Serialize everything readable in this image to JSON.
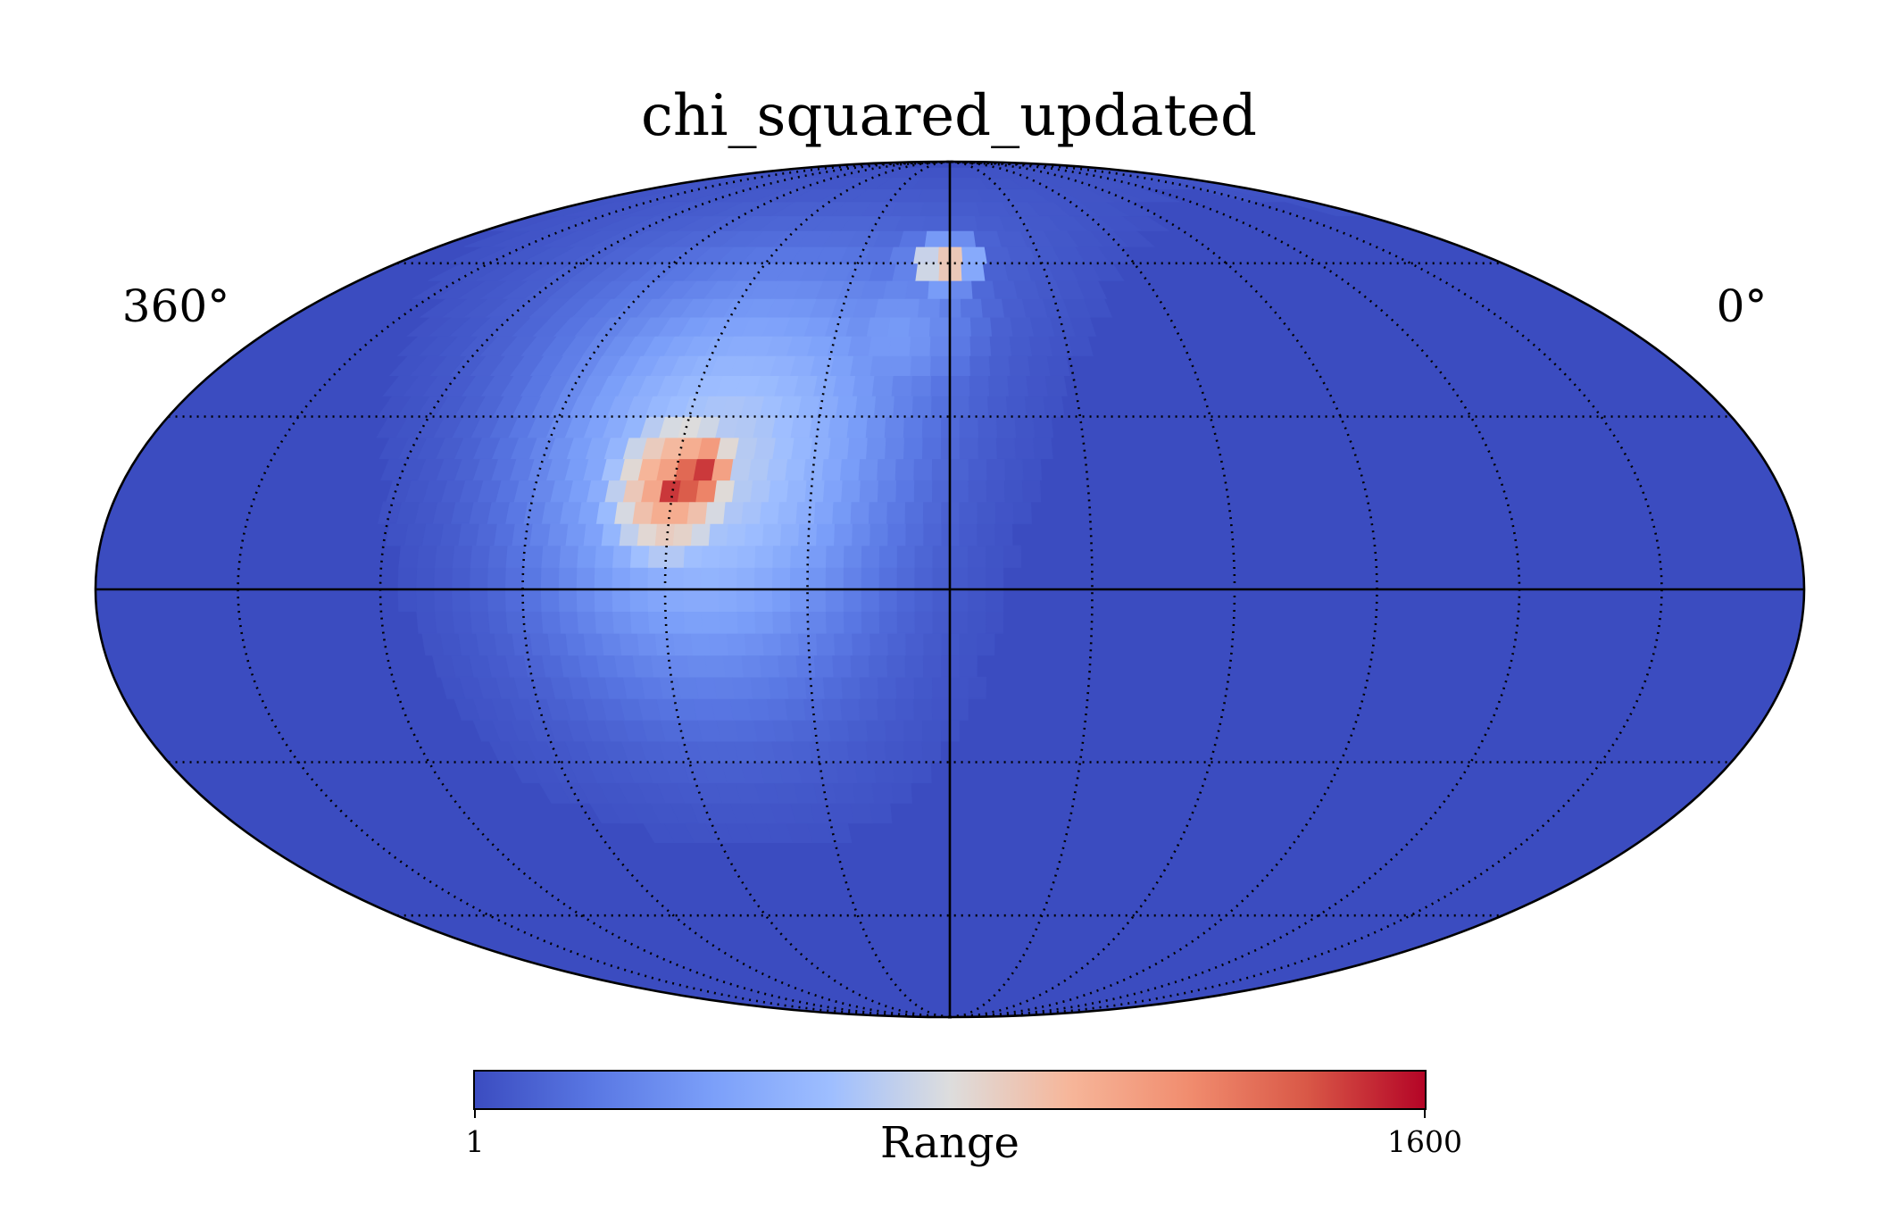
{
  "chart_data": {
    "type": "heatmap",
    "projection": "mollweide",
    "title": "chi_squared_updated",
    "lon_labels": {
      "left": "360°",
      "right": "0°"
    },
    "grid": true,
    "colorbar": {
      "label": "Range",
      "min": 1,
      "max": 1600,
      "min_label": "1",
      "max_label": "1600",
      "colormap": "coolwarm",
      "orientation": "horizontal",
      "placement": "bottom"
    },
    "background_value": 1,
    "hotspots": [
      {
        "lon_deg": 59,
        "lat_deg": 17,
        "value": 1600,
        "spread_deg": 4
      },
      {
        "lon_deg": 55,
        "lat_deg": 20,
        "value": 1500,
        "spread_deg": 6
      },
      {
        "lon_deg": 60,
        "lat_deg": 18,
        "value": 1150,
        "spread_deg": 12
      },
      {
        "lon_deg": 52,
        "lat_deg": 21,
        "value": 700,
        "spread_deg": 26
      },
      {
        "lon_deg": 37,
        "lat_deg": 33,
        "value": 420,
        "spread_deg": 18
      },
      {
        "lon_deg": 15,
        "lat_deg": 45,
        "value": 380,
        "spread_deg": 12
      },
      {
        "lon_deg": 2,
        "lat_deg": 60,
        "value": 1050,
        "spread_deg": 4
      }
    ]
  }
}
